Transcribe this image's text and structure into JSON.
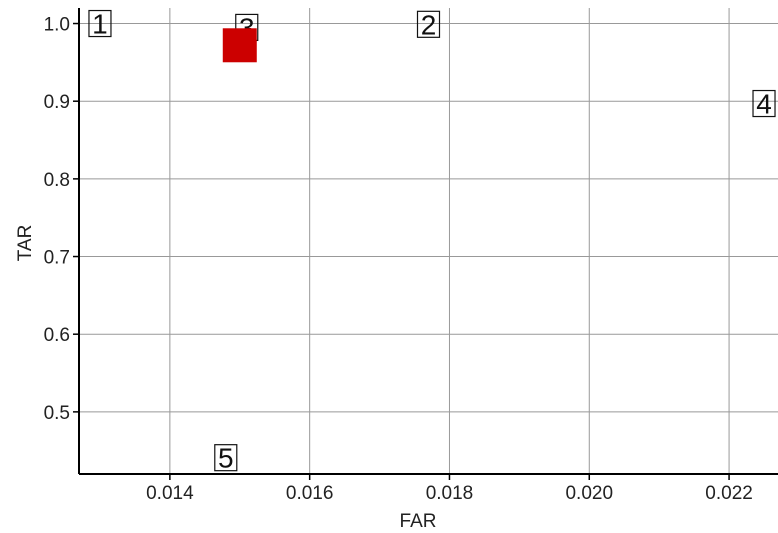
{
  "chart_data": {
    "type": "scatter",
    "title": "",
    "xlabel": "FAR",
    "ylabel": "TAR",
    "xlim": [
      0.0127,
      0.0227
    ],
    "ylim": [
      0.42,
      1.02
    ],
    "xticks": [
      "0.014",
      "0.016",
      "0.018",
      "0.020",
      "0.022"
    ],
    "xtick_values": [
      0.014,
      0.016,
      0.018,
      0.02,
      0.022
    ],
    "yticks": [
      "0.5",
      "0.6",
      "0.7",
      "0.8",
      "0.9",
      "1.0"
    ],
    "ytick_values": [
      0.5,
      0.6,
      0.7,
      0.8,
      0.9,
      1.0
    ],
    "grid": true,
    "points": [
      {
        "label": "1",
        "x": 0.013,
        "y": 1.0
      },
      {
        "label": "2",
        "x": 0.0177,
        "y": 0.999
      },
      {
        "label": "3",
        "x": 0.0151,
        "y": 0.995
      },
      {
        "label": "4",
        "x": 0.0225,
        "y": 0.897
      },
      {
        "label": "5",
        "x": 0.0148,
        "y": 0.441
      }
    ],
    "highlight": {
      "x": 0.015,
      "y": 0.972,
      "color": "#cc0000"
    },
    "colors": {
      "grid": "#999999",
      "axis": "#000000",
      "highlight": "#cc0000"
    }
  }
}
